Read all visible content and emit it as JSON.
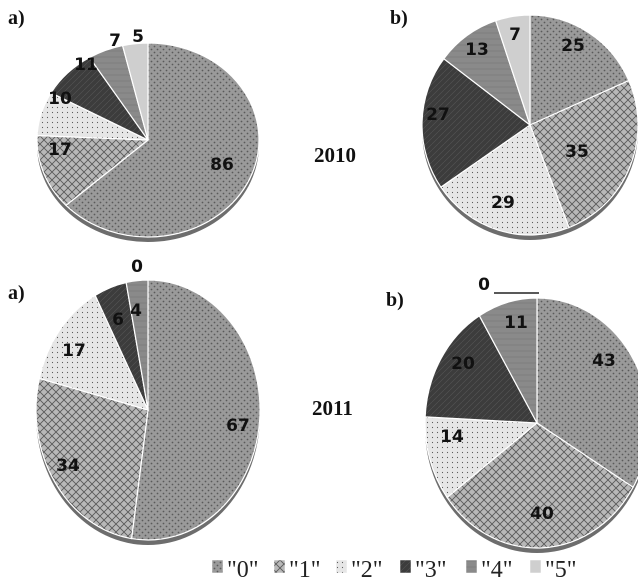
{
  "series_names": [
    "\"0\"",
    "\"1\"",
    "\"2\"",
    "\"3\"",
    "\"4\"",
    "\"5\""
  ],
  "colors": {
    "fill_0": "#9a9a9a",
    "fill_1": "#b8b8b8",
    "fill_2": "#e6e6e6",
    "fill_3": "#3c3c3c",
    "fill_4": "#8a8a8a",
    "fill_5": "#cfcfcf",
    "hatch": "#5a5a5a",
    "rim": "#6d6d6d"
  },
  "year_labels": [
    "2010",
    "2011"
  ],
  "chart_data": [
    {
      "type": "pie",
      "panel": "a)",
      "year": "2010",
      "labels": [
        "\"0\"",
        "\"1\"",
        "\"2\"",
        "\"3\"",
        "\"4\"",
        "\"5\""
      ],
      "values": [
        86,
        17,
        10,
        11,
        7,
        5
      ],
      "slice_labels": [
        "86",
        "17",
        "10",
        "11",
        "7",
        "5"
      ]
    },
    {
      "type": "pie",
      "panel": "b)",
      "year": "2010",
      "labels": [
        "\"0\"",
        "\"1\"",
        "\"2\"",
        "\"3\"",
        "\"4\"",
        "\"5\""
      ],
      "values": [
        25,
        35,
        29,
        27,
        13,
        7
      ],
      "slice_labels": [
        "25",
        "35",
        "29",
        "27",
        "13",
        "7"
      ]
    },
    {
      "type": "pie",
      "panel": "a)",
      "year": "2011",
      "labels": [
        "\"0\"",
        "\"1\"",
        "\"2\"",
        "\"3\"",
        "\"4\"",
        "\"5\""
      ],
      "values": [
        67,
        34,
        17,
        6,
        4,
        0
      ],
      "slice_labels": [
        "67",
        "34",
        "17",
        "6",
        "4",
        "0"
      ]
    },
    {
      "type": "pie",
      "panel": "b)",
      "year": "2011",
      "labels": [
        "\"0\"",
        "\"1\"",
        "\"2\"",
        "\"3\"",
        "\"4\"",
        "\"5\""
      ],
      "values": [
        43,
        40,
        14,
        20,
        11,
        0
      ],
      "slice_labels": [
        "43",
        "40",
        "14",
        "20",
        "11",
        "0"
      ]
    }
  ]
}
